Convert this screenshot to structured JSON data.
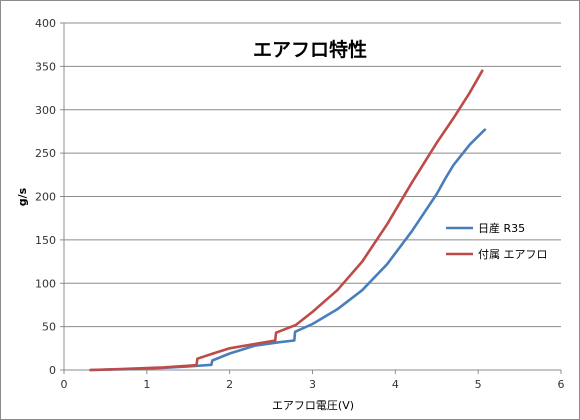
{
  "chart_data": {
    "type": "line",
    "title": "エアフロ特性",
    "xlabel": "エアフロ電圧(V)",
    "ylabel": "g/s",
    "xlim": [
      0,
      6
    ],
    "ylim": [
      0,
      400
    ],
    "xticks": [
      0,
      1,
      2,
      3,
      4,
      5,
      6
    ],
    "yticks": [
      0,
      50,
      100,
      150,
      200,
      250,
      300,
      350,
      400
    ],
    "grid": "horizontal",
    "legend_position": "right",
    "series": [
      {
        "name": "日産 R35",
        "color": "#4a7ebb",
        "points": [
          [
            0.32,
            0
          ],
          [
            0.8,
            1
          ],
          [
            1.2,
            2.5
          ],
          [
            1.5,
            4
          ],
          [
            1.78,
            6
          ],
          [
            1.79,
            11
          ],
          [
            2.0,
            19
          ],
          [
            2.3,
            28
          ],
          [
            2.6,
            32
          ],
          [
            2.78,
            34
          ],
          [
            2.79,
            44
          ],
          [
            3.0,
            53
          ],
          [
            3.3,
            70
          ],
          [
            3.6,
            92
          ],
          [
            3.9,
            122
          ],
          [
            4.2,
            160
          ],
          [
            4.5,
            203
          ],
          [
            4.6,
            220
          ],
          [
            4.7,
            236
          ],
          [
            4.9,
            260
          ],
          [
            5.08,
            277
          ]
        ]
      },
      {
        "name": "付属 エアフロ",
        "color": "#be4b48",
        "points": [
          [
            0.32,
            0
          ],
          [
            0.8,
            1.5
          ],
          [
            1.2,
            3
          ],
          [
            1.6,
            5.5
          ],
          [
            1.61,
            13
          ],
          [
            1.8,
            19
          ],
          [
            2.0,
            25
          ],
          [
            2.3,
            30
          ],
          [
            2.55,
            34
          ],
          [
            2.56,
            43
          ],
          [
            2.8,
            52
          ],
          [
            3.0,
            67
          ],
          [
            3.3,
            92
          ],
          [
            3.6,
            125
          ],
          [
            3.9,
            168
          ],
          [
            4.2,
            216
          ],
          [
            4.5,
            262
          ],
          [
            4.7,
            290
          ],
          [
            4.9,
            320
          ],
          [
            5.05,
            345
          ]
        ]
      }
    ]
  }
}
